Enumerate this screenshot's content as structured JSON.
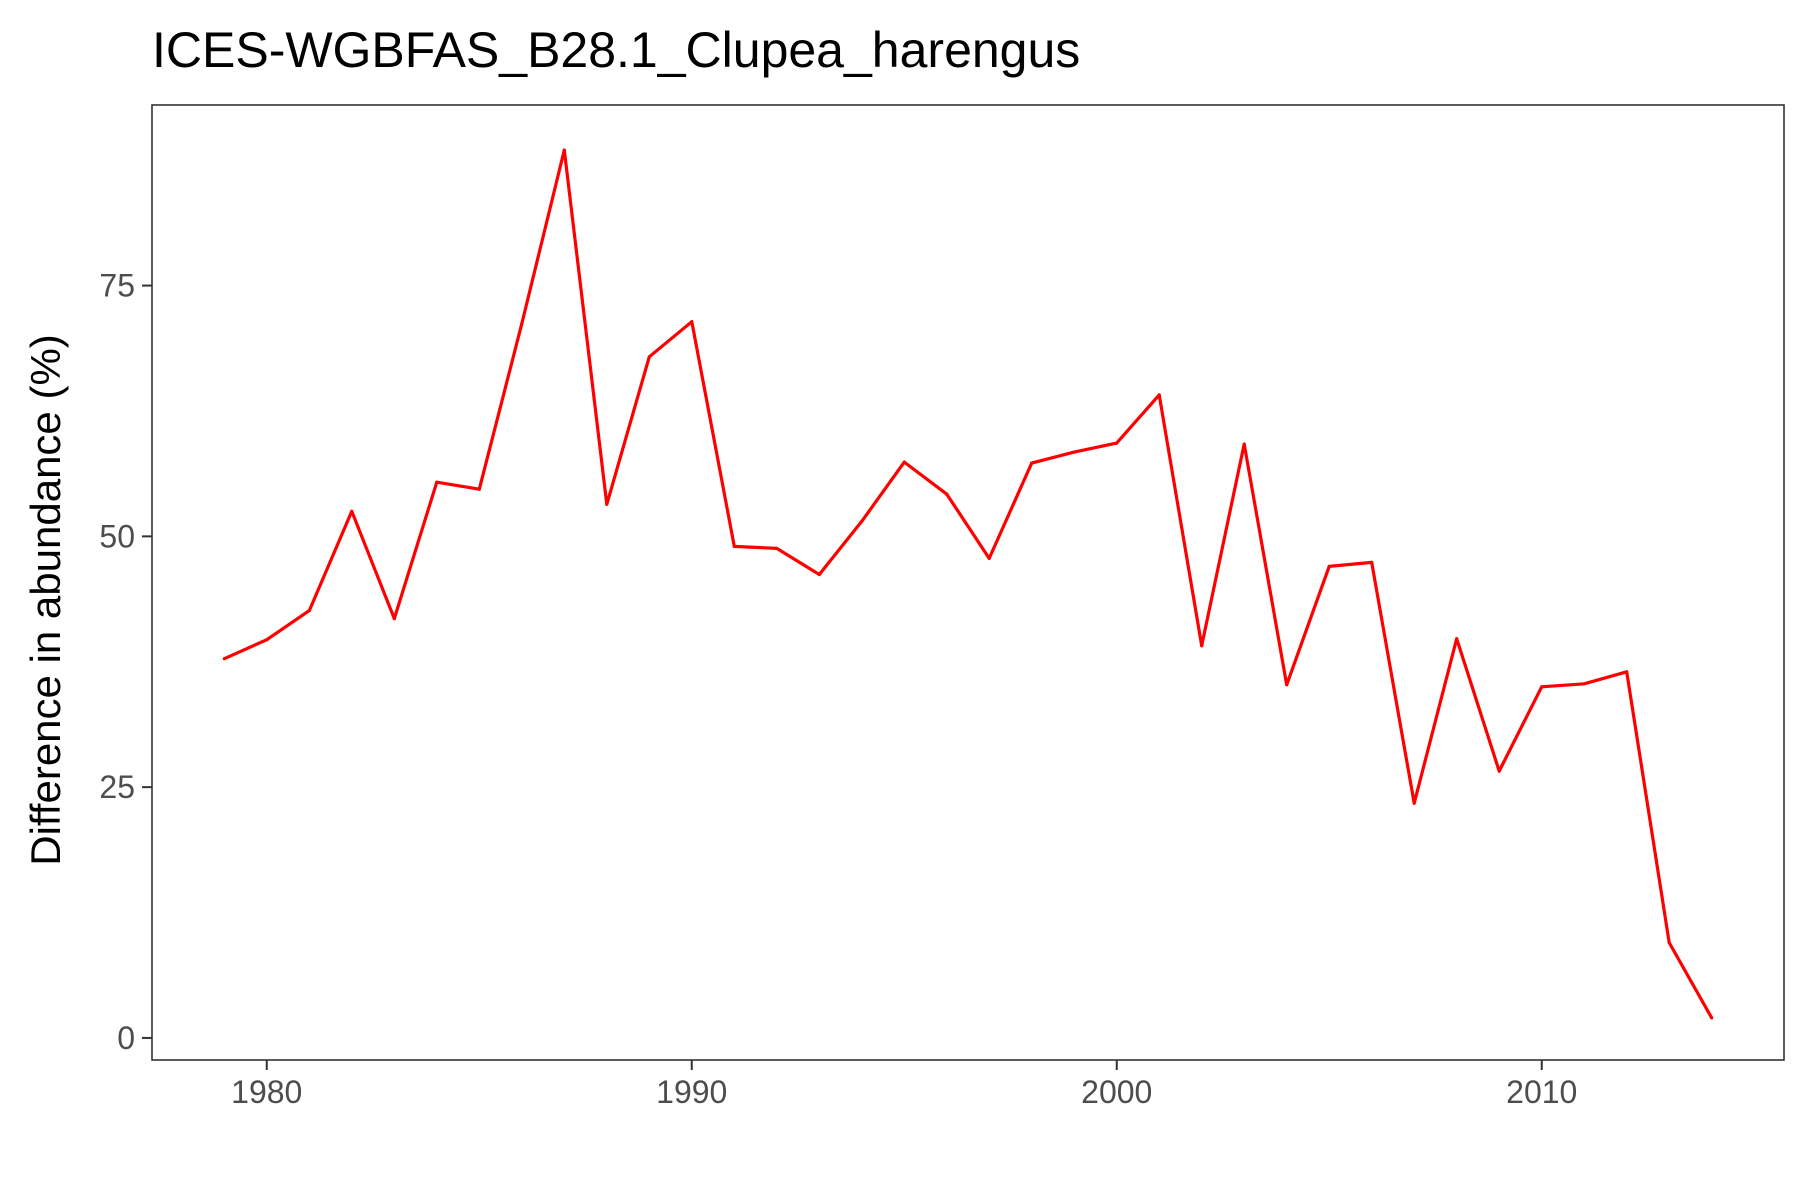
{
  "chart_data": {
    "type": "line",
    "title": "ICES-WGBFAS_B28.1_Clupea_harengus",
    "xlabel": "",
    "ylabel": "Difference in abundance (%)",
    "xlim": [
      1977.3,
      2015.7
    ],
    "ylim": [
      -2.2,
      93.0
    ],
    "x_ticks": [
      1980,
      1990,
      2000,
      2010
    ],
    "y_ticks": [
      0,
      25,
      50,
      75
    ],
    "grid": false,
    "legend": "none",
    "series": [
      {
        "color": "#ff0000",
        "x": [
          1979,
          1980,
          1981,
          1982,
          1983,
          1984,
          1985,
          1986,
          1987,
          1988,
          1989,
          1990,
          1991,
          1992,
          1993,
          1994,
          1995,
          1996,
          1997,
          1998,
          1999,
          2000,
          2001,
          2002,
          2003,
          2004,
          2005,
          2006,
          2007,
          2008,
          2009,
          2010,
          2011,
          2012,
          2013,
          2014
        ],
        "values": [
          37.8,
          39.7,
          42.6,
          52.5,
          41.8,
          55.4,
          54.7,
          71.2,
          88.5,
          53.2,
          67.9,
          71.4,
          49.0,
          48.8,
          46.2,
          51.5,
          57.4,
          54.2,
          47.8,
          57.3,
          58.4,
          59.3,
          64.1,
          39.1,
          59.2,
          35.2,
          47.0,
          47.4,
          23.4,
          39.8,
          26.6,
          35.0,
          35.3,
          36.5,
          9.5,
          2.0
        ]
      }
    ]
  }
}
